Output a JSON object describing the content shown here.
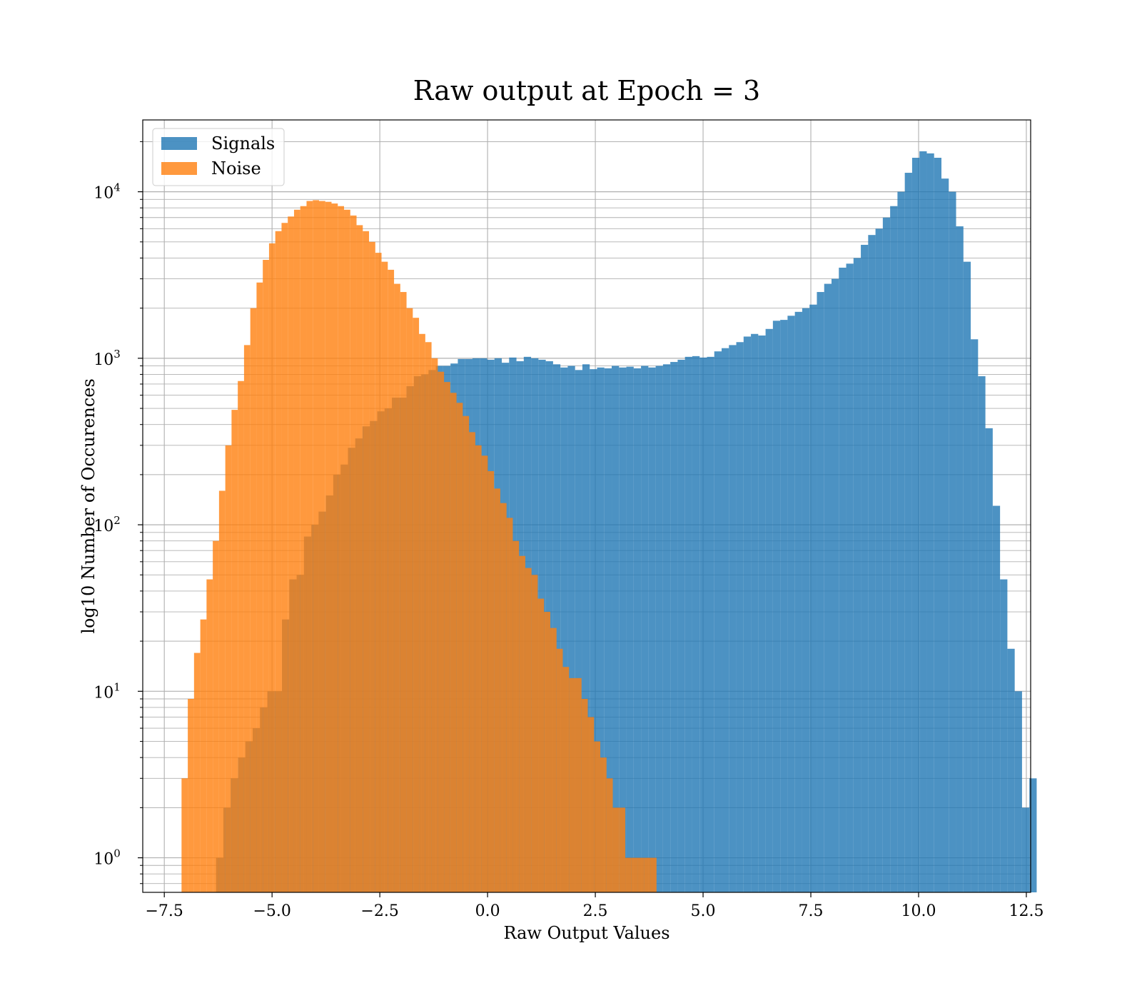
{
  "chart_data": {
    "type": "histogram",
    "title": "Raw output at Epoch = 3",
    "xlabel": "Raw Output Values",
    "ylabel": "log10 Number of Occurences",
    "xlim": [
      -8.0,
      12.6
    ],
    "ylim": [
      0.62,
      27000
    ],
    "y_scale": "log",
    "grid": true,
    "legend_position": "top-left",
    "x_ticks": [
      {
        "value": -7.5,
        "label": "−7.5"
      },
      {
        "value": -5.0,
        "label": "−5.0"
      },
      {
        "value": -2.5,
        "label": "−2.5"
      },
      {
        "value": 0.0,
        "label": "0.0"
      },
      {
        "value": 2.5,
        "label": "2.5"
      },
      {
        "value": 5.0,
        "label": "5.0"
      },
      {
        "value": 7.5,
        "label": "7.5"
      },
      {
        "value": 10.0,
        "label": "10.0"
      },
      {
        "value": 12.5,
        "label": "12.5"
      }
    ],
    "y_ticks": [
      {
        "value": 1,
        "base": "10",
        "exp": "0"
      },
      {
        "value": 10,
        "base": "10",
        "exp": "1"
      },
      {
        "value": 100,
        "base": "10",
        "exp": "2"
      },
      {
        "value": 1000,
        "base": "10",
        "exp": "3"
      },
      {
        "value": 10000,
        "base": "10",
        "exp": "4"
      }
    ],
    "series": [
      {
        "name": "Signals",
        "color": "#1f77b4",
        "alpha": 0.8,
        "bin_start": -6.3,
        "bin_width": 0.17,
        "values": [
          1,
          2,
          3,
          4,
          5,
          6,
          8,
          10,
          10,
          27,
          47,
          50,
          85,
          100,
          120,
          150,
          200,
          230,
          290,
          330,
          390,
          420,
          480,
          500,
          580,
          580,
          680,
          780,
          800,
          850,
          900,
          900,
          930,
          990,
          990,
          1000,
          1000,
          980,
          1000,
          940,
          1010,
          960,
          1020,
          1000,
          980,
          960,
          920,
          880,
          900,
          850,
          920,
          860,
          880,
          870,
          900,
          880,
          890,
          870,
          900,
          880,
          900,
          920,
          950,
          980,
          1020,
          1030,
          1010,
          1020,
          1100,
          1150,
          1200,
          1250,
          1350,
          1400,
          1370,
          1500,
          1680,
          1700,
          1800,
          1900,
          2000,
          2100,
          2500,
          2800,
          3000,
          3500,
          3700,
          4000,
          4800,
          5500,
          6000,
          7000,
          8200,
          10000,
          13000,
          16000,
          17500,
          17000,
          16000,
          12000,
          10000,
          6200,
          3800,
          1300,
          780,
          380,
          130,
          47,
          18,
          10,
          2,
          3
        ]
      },
      {
        "name": "Noise",
        "color": "#ff7f0e",
        "alpha": 0.8,
        "bin_start": -7.1,
        "bin_width": 0.145,
        "values": [
          3,
          9,
          17,
          27,
          47,
          80,
          160,
          300,
          490,
          730,
          1200,
          2000,
          2850,
          3900,
          4900,
          5800,
          6500,
          7100,
          7800,
          8200,
          8800,
          8900,
          8800,
          8700,
          8500,
          8200,
          7800,
          7200,
          6300,
          5800,
          5000,
          4300,
          3800,
          3400,
          2800,
          2500,
          2000,
          1750,
          1400,
          1250,
          1000,
          830,
          720,
          620,
          540,
          450,
          360,
          300,
          260,
          210,
          165,
          135,
          110,
          80,
          65,
          55,
          50,
          36,
          30,
          24,
          18,
          14,
          12,
          12,
          9,
          7,
          5,
          4,
          3,
          2,
          2,
          1,
          1,
          1,
          1,
          1
        ]
      }
    ]
  }
}
